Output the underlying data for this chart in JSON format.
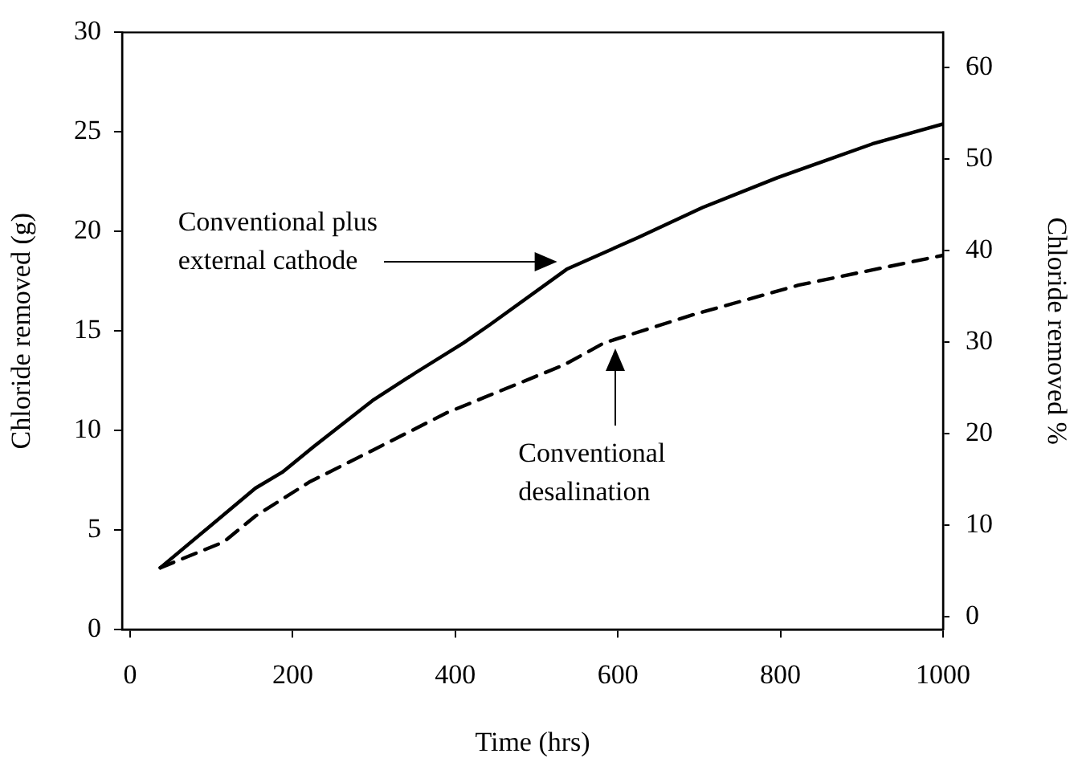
{
  "chart_data": {
    "type": "line",
    "xlabel": "Time (hrs)",
    "ylabel": "Chloride removed (g)",
    "y2label": "Chloride removed %",
    "xlim": [
      -10,
      1000
    ],
    "xticks": [
      0,
      200,
      400,
      600,
      800,
      1000
    ],
    "ylim": [
      0,
      30
    ],
    "yticks": [
      0,
      5,
      10,
      15,
      20,
      25,
      30
    ],
    "y2lim": [
      -1.4,
      63.8
    ],
    "y2ticks": [
      0,
      10,
      20,
      30,
      40,
      50,
      60
    ],
    "grid": false,
    "legend": false,
    "marker": "none",
    "series": [
      {
        "color": "#000000",
        "line_style": "solid",
        "x": [
          37,
          154,
          187,
          226,
          298,
          351,
          410,
          442,
          537,
          625,
          704,
          796,
          913,
          1000
        ],
        "values": [
          3.1,
          7.1,
          7.9,
          9.2,
          11.5,
          12.9,
          14.4,
          15.3,
          18.1,
          19.7,
          21.2,
          22.7,
          24.4,
          25.4
        ]
      },
      {
        "color": "#000000",
        "line_style": "dashed",
        "x": [
          37,
          115,
          154,
          220,
          298,
          390,
          534,
          583,
          691,
          822,
          1000
        ],
        "values": [
          3.1,
          4.4,
          5.7,
          7.4,
          9.0,
          10.9,
          13.3,
          14.4,
          15.8,
          17.3,
          18.8
        ]
      }
    ],
    "annotations": [
      "Conventional plus external cathode",
      "Conventional desalination"
    ]
  }
}
